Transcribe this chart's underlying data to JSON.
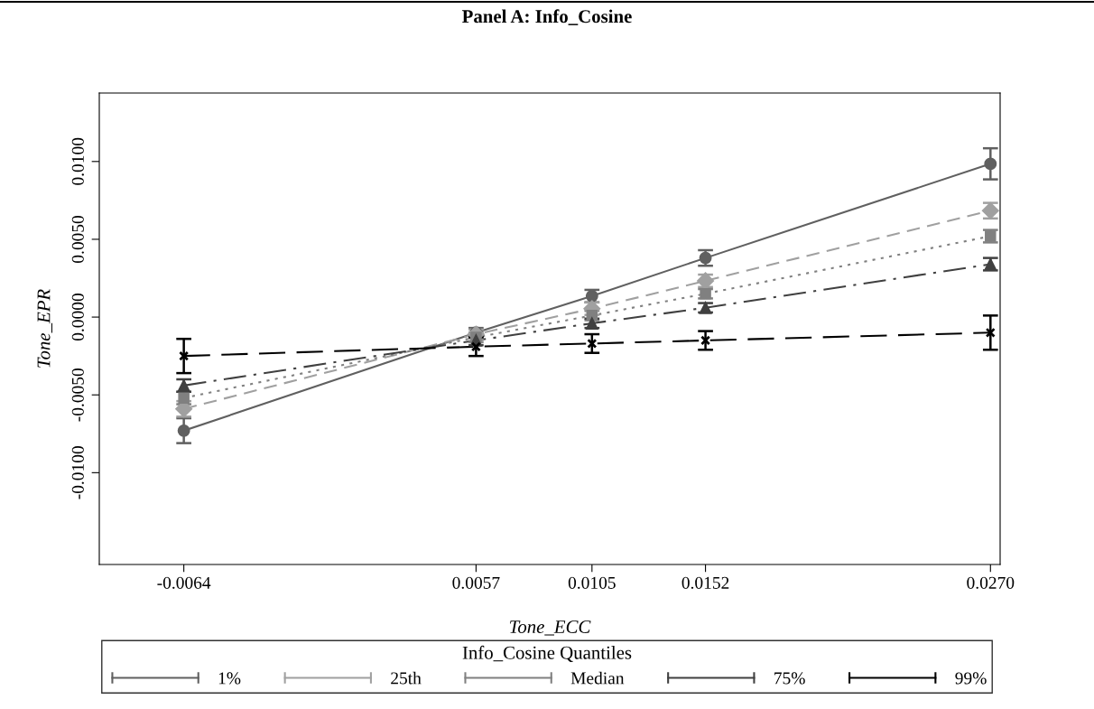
{
  "chart_data": {
    "type": "line",
    "title": "Panel A: Info_Cosine",
    "xlabel": "Tone_ECC",
    "ylabel": "Tone_EPR",
    "legend_title": "Info_Cosine Quantiles",
    "x": [
      -0.0064,
      0.0057,
      0.0105,
      0.0152,
      0.027
    ],
    "xlim": [
      -0.0099,
      0.0274
    ],
    "xticks": [
      -0.0064,
      0.0057,
      0.0105,
      0.0152,
      {
        "value": 0.027,
        "label": "0.0270"
      }
    ],
    "ylim": [
      -0.0159,
      0.0144
    ],
    "yticks": [
      {
        "value": -0.01,
        "label": "-0.0100"
      },
      {
        "value": -0.005,
        "label": "-0.0050"
      },
      {
        "value": 0,
        "label": "0.0000"
      },
      {
        "value": 0.005,
        "label": "0.0050"
      },
      {
        "value": 0.01,
        "label": "0.0100"
      }
    ],
    "grid": false,
    "legend": "bottom",
    "series": [
      {
        "name": "1%",
        "color": "#606060",
        "marker": "circle",
        "line_style": "solid",
        "values": [
          -0.0073,
          -0.001,
          0.00135,
          0.0038,
          0.00985
        ],
        "errors": [
          0.0008,
          0.0003,
          0.0004,
          0.0005,
          0.001
        ]
      },
      {
        "name": "25th",
        "color": "#a0a0a0",
        "marker": "diamond",
        "line_style": "dashed",
        "values": [
          -0.0059,
          -0.0011,
          0.00054,
          0.00233,
          0.00684
        ],
        "errors": [
          0.0005,
          0.0003,
          0.0004,
          0.0004,
          0.0005
        ]
      },
      {
        "name": "Median",
        "color": "#808080",
        "marker": "square",
        "line_style": "dotted",
        "values": [
          -0.0052,
          -0.0013,
          0.0001,
          0.0015,
          0.0052
        ],
        "errors": [
          0.0004,
          0.0003,
          0.0003,
          0.0003,
          0.0004
        ]
      },
      {
        "name": "75%",
        "color": "#404040",
        "marker": "triangle",
        "line_style": "dashdot",
        "values": [
          -0.0044,
          -0.0015,
          -0.0004,
          0.0006,
          0.0034
        ],
        "errors": [
          0.0004,
          0.0003,
          0.0003,
          0.0003,
          0.0004
        ]
      },
      {
        "name": "99%",
        "color": "#000000",
        "marker": "cross",
        "line_style": "longdash",
        "values": [
          -0.0025,
          -0.0019,
          -0.0017,
          -0.0015,
          -0.001
        ],
        "errors": [
          0.0011,
          0.0006,
          0.0006,
          0.0006,
          0.0011
        ]
      }
    ]
  }
}
